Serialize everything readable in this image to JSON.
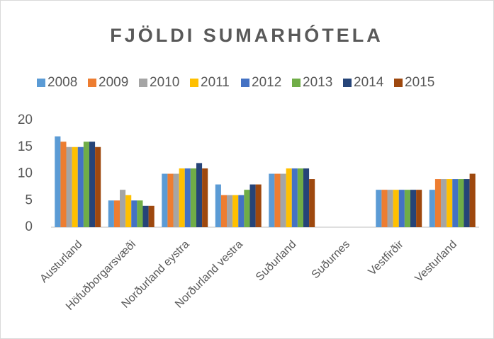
{
  "chart_data": {
    "type": "bar",
    "title": "FJÖLDI SUMARHÓTELA",
    "categories": [
      "Austurland",
      "Höfuðborgarsvæði",
      "Norðurland eystra",
      "Norðurland vestra",
      "Suðurland",
      "Suðurnes",
      "Vestfirðir",
      "Vesturland"
    ],
    "series": [
      {
        "name": "2008",
        "color": "#5B9BD5",
        "values": [
          17,
          5,
          10,
          8,
          10,
          0,
          7,
          7
        ]
      },
      {
        "name": "2009",
        "color": "#ED7D31",
        "values": [
          16,
          5,
          10,
          6,
          10,
          0,
          7,
          9
        ]
      },
      {
        "name": "2010",
        "color": "#A5A5A5",
        "values": [
          15,
          7,
          10,
          6,
          10,
          0,
          7,
          9
        ]
      },
      {
        "name": "2011",
        "color": "#FFC000",
        "values": [
          15,
          6,
          11,
          6,
          11,
          0,
          7,
          9
        ]
      },
      {
        "name": "2012",
        "color": "#4472C4",
        "values": [
          15,
          5,
          11,
          6,
          11,
          0,
          7,
          9
        ]
      },
      {
        "name": "2013",
        "color": "#70AD47",
        "values": [
          16,
          5,
          11,
          7,
          11,
          0,
          7,
          9
        ]
      },
      {
        "name": "2014",
        "color": "#264478",
        "values": [
          16,
          4,
          12,
          8,
          11,
          0,
          7,
          9
        ]
      },
      {
        "name": "2015",
        "color": "#9E480E",
        "values": [
          15,
          4,
          11,
          8,
          9,
          0,
          7,
          10
        ]
      }
    ],
    "ylim": [
      0,
      20
    ],
    "yticks": [
      0,
      5,
      10,
      15,
      20
    ],
    "grid": false,
    "legend": "top"
  }
}
